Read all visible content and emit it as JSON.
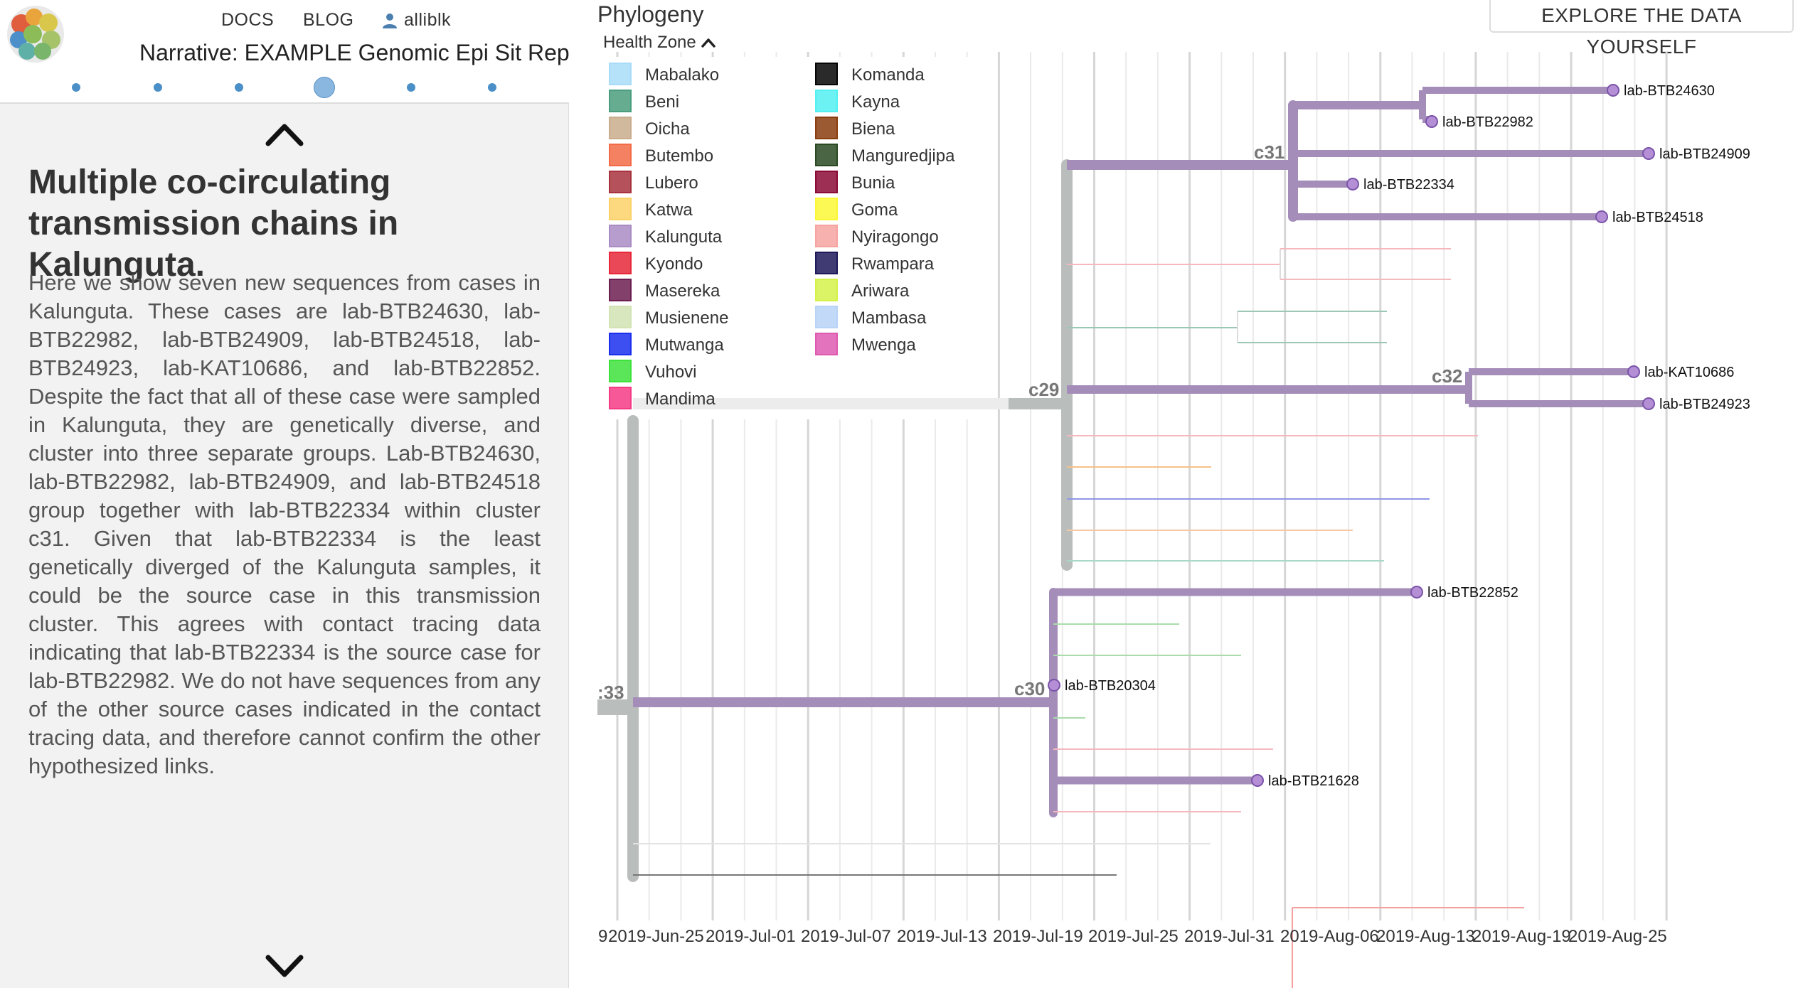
{
  "nav": {
    "docs": "DOCS",
    "blog": "BLOG",
    "user": "alliblk",
    "narrative_title": "Narrative: EXAMPLE Genomic Epi Sit Rep",
    "dots_count": 6,
    "active_dot": 4
  },
  "slide": {
    "heading": "Multiple co-circulating transmission chains in Kalunguta.",
    "body": "Here we show seven new sequences from cases in Kalunguta. These cases are lab-BTB24630, lab-BTB22982, lab-BTB24909, lab-BTB24518, lab-BTB24923, lab-KAT10686, and lab-BTB22852. Despite the fact that all of these case were sampled in Kalunguta, they are genetically diverse, and cluster into three separate groups. Lab-BTB24630, lab-BTB22982, lab-BTB24909, and lab-BTB24518 group together with lab-BTB22334 within cluster c31. Given that lab-BTB22334 is the least genetically diverged of the Kalunguta samples, it could be the source case in this transmission cluster. This agrees with contact tracing data indicating that lab-BTB22334 is the source case for lab-BTB22982. We do not have sequences from any of the other source cases indicated in the contact tracing data, and therefore cannot confirm the other hypothesized links."
  },
  "panel": {
    "title": "Phylogeny",
    "explore_button": "EXPLORE THE DATA YOURSELF",
    "legend_title": "Health Zone"
  },
  "legend": [
    {
      "label": "Mabalako",
      "color": "#a8dcf8"
    },
    {
      "label": "Beni",
      "color": "#4a9d7e"
    },
    {
      "label": "Oicha",
      "color": "#c9ad8c"
    },
    {
      "label": "Butembo",
      "color": "#f26b46"
    },
    {
      "label": "Lubero",
      "color": "#a8323d"
    },
    {
      "label": "Katwa",
      "color": "#fcd168"
    },
    {
      "label": "Kalunguta",
      "color": "#a98cc4"
    },
    {
      "label": "Kyondo",
      "color": "#e8283a"
    },
    {
      "label": "Masereka",
      "color": "#6c1e50"
    },
    {
      "label": "Musienene",
      "color": "#d2e3b4"
    },
    {
      "label": "Mutwanga",
      "color": "#1b30ee"
    },
    {
      "label": "Vuhovi",
      "color": "#3ee23c"
    },
    {
      "label": "Mandima",
      "color": "#f43b86"
    },
    {
      "label": "Komanda",
      "color": "#050505"
    },
    {
      "label": "Kayna",
      "color": "#52f0f0"
    },
    {
      "label": "Biena",
      "color": "#8a3d0e"
    },
    {
      "label": "Manguredjipa",
      "color": "#2a4a22"
    },
    {
      "label": "Bunia",
      "color": "#8c0a36"
    },
    {
      "label": "Goma",
      "color": "#fcf736"
    },
    {
      "label": "Nyiragongo",
      "color": "#f6a3a0"
    },
    {
      "label": "Rwampara",
      "color": "#1e1a5a"
    },
    {
      "label": "Ariwara",
      "color": "#d4f24a"
    },
    {
      "label": "Mambasa",
      "color": "#b7d4f6"
    },
    {
      "label": "Mwenga",
      "color": "#de5ab0"
    }
  ],
  "axis_ticks": [
    "9",
    "2019-Jun-25",
    "2019-Jul-01",
    "2019-Jul-07",
    "2019-Jul-13",
    "2019-Jul-19",
    "2019-Jul-25",
    "2019-Jul-31",
    "2019-Aug-06",
    "2019-Aug-13",
    "2019-Aug-19",
    "2019-Aug-25"
  ],
  "clades": [
    "c31",
    "c29",
    "c32",
    "c30",
    ":33"
  ],
  "tips": [
    {
      "label": "lab-BTB24630",
      "health_zone": "Kalunguta"
    },
    {
      "label": "lab-BTB22982",
      "health_zone": "Kalunguta"
    },
    {
      "label": "lab-BTB24909",
      "health_zone": "Kalunguta"
    },
    {
      "label": "lab-BTB22334",
      "health_zone": "Kalunguta"
    },
    {
      "label": "lab-BTB24518",
      "health_zone": "Kalunguta"
    },
    {
      "label": "lab-KAT10686",
      "health_zone": "Kalunguta"
    },
    {
      "label": "lab-BTB24923",
      "health_zone": "Kalunguta"
    },
    {
      "label": "lab-BTB22852",
      "health_zone": "Kalunguta"
    },
    {
      "label": "lab-BTB20304",
      "health_zone": "Kalunguta"
    },
    {
      "label": "lab-BTB21628",
      "health_zone": "Kalunguta"
    }
  ],
  "colors": {
    "kalunguta_branch": "#a58dba",
    "ancestor_branch": "#b9bdbb",
    "tip_fill": "#b48fd6",
    "tip_stroke": "#7a54a8",
    "grid": "#e3e3e3",
    "accent_dot": "#4a8fc7"
  }
}
